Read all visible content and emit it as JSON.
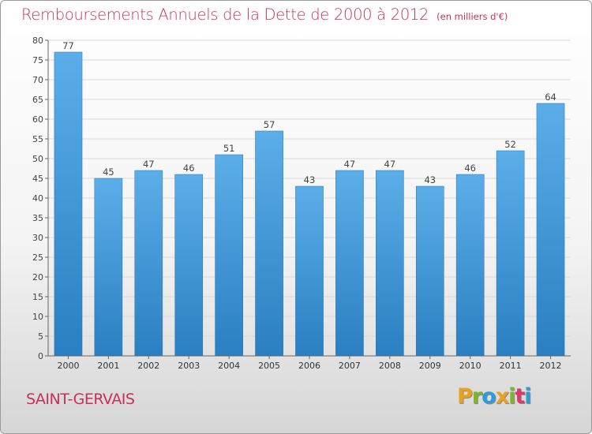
{
  "header": {
    "title": "Remboursements Annuels de la Dette de 2000 à 2012",
    "unit": "(en milliers d'€)"
  },
  "footer": {
    "city": "SAINT-GERVAIS",
    "logo_letters": [
      "P",
      "r",
      "o",
      "x",
      "i",
      "t",
      "i"
    ],
    "logo_colors": [
      "#e8a21d",
      "#7ab829",
      "#2f9bd6",
      "#e8a21d",
      "#7ab829",
      "#d93a6b",
      "#2f9bd6"
    ]
  },
  "chart_data": {
    "type": "bar",
    "title": "Remboursements Annuels de la Dette de 2000 à 2012",
    "categories": [
      "2000",
      "2001",
      "2002",
      "2003",
      "2004",
      "2005",
      "2006",
      "2007",
      "2008",
      "2009",
      "2010",
      "2011",
      "2012"
    ],
    "values": [
      77,
      45,
      47,
      46,
      51,
      57,
      43,
      47,
      47,
      43,
      46,
      52,
      64
    ],
    "ylim": [
      0,
      80
    ],
    "yticks": [
      0,
      5,
      10,
      15,
      20,
      25,
      30,
      35,
      40,
      45,
      50,
      55,
      60,
      65,
      70,
      75,
      80
    ],
    "grid": true,
    "bar_color_top": "#5baee8",
    "bar_color_bottom": "#2a7fc2"
  }
}
